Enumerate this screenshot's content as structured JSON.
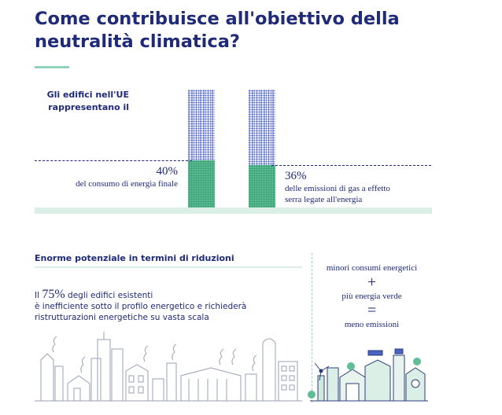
{
  "title": "Come contribuisce all'obiettivo della neutralità climatica?",
  "intro": "Gli edifici nell'UE rappresentano il",
  "stat_energy": {
    "value": "40%",
    "text": "del consumo di energia finale",
    "fraction": 0.4
  },
  "stat_emissions": {
    "value": "36%",
    "text_line1": "delle emissioni di gas a effetto",
    "text_line2": "serra legate all'energia",
    "fraction": 0.36
  },
  "section2": {
    "heading": "Enorme potenziale in termini di riduzioni",
    "prefix": "Il",
    "big_value": "75%",
    "line1_rest": "degli edifici esistenti",
    "line2": "è inefficiente sotto il profilo energetico e richiederà",
    "line3": "ristrutturazioni energetiche su vasta scala"
  },
  "formula": {
    "line1": "minori consumi energetici",
    "plus": "+",
    "line2": "più energia verde",
    "equals": "=",
    "line3": "meno emissioni"
  },
  "colors": {
    "navy": "#1f2a78",
    "green": "#5fbe95",
    "pale_green": "#dcefe6",
    "blue_dots": "#4a62c4"
  }
}
